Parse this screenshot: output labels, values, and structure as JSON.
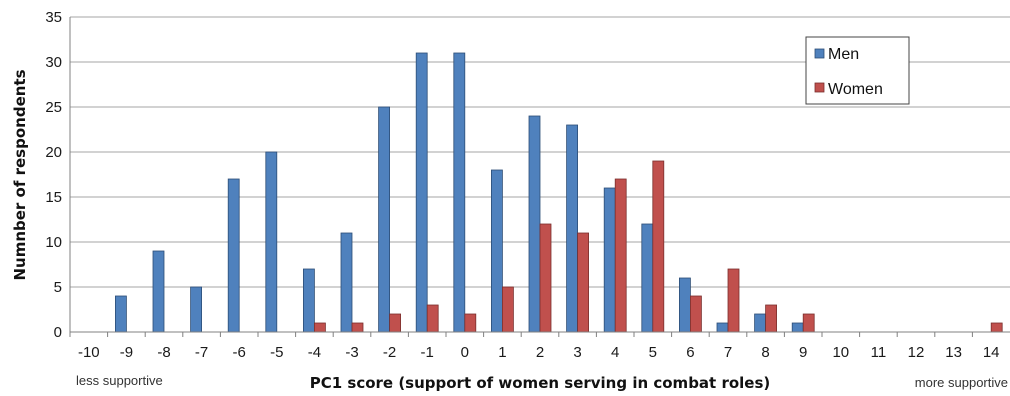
{
  "chart_data": {
    "type": "bar",
    "xlabel": "PC1 score (support of women serving in combat roles)",
    "ylabel": "Numnber of respondents",
    "categories": [
      "-10",
      "-9",
      "-8",
      "-7",
      "-6",
      "-5",
      "-4",
      "-3",
      "-2",
      "-1",
      "0",
      "1",
      "2",
      "3",
      "4",
      "5",
      "6",
      "7",
      "8",
      "9",
      "10",
      "11",
      "12",
      "13",
      "14"
    ],
    "series": [
      {
        "name": "Men",
        "color": "#4F81BD",
        "values": [
          0,
          4,
          9,
          5,
          17,
          20,
          7,
          11,
          25,
          31,
          31,
          18,
          24,
          23,
          16,
          12,
          6,
          1,
          2,
          1,
          0,
          0,
          0,
          0,
          0
        ]
      },
      {
        "name": "Women",
        "color": "#C0504D",
        "values": [
          0,
          0,
          0,
          0,
          0,
          0,
          1,
          1,
          2,
          3,
          2,
          5,
          12,
          11,
          17,
          19,
          4,
          7,
          3,
          2,
          0,
          0,
          0,
          0,
          1
        ]
      }
    ],
    "ylim": [
      0,
      35
    ],
    "yticks": [
      0,
      5,
      10,
      15,
      20,
      25,
      30,
      35
    ],
    "grid": true,
    "legend_position": "top-right",
    "annotations": {
      "left": "less supportive",
      "right": "more supportive"
    }
  }
}
